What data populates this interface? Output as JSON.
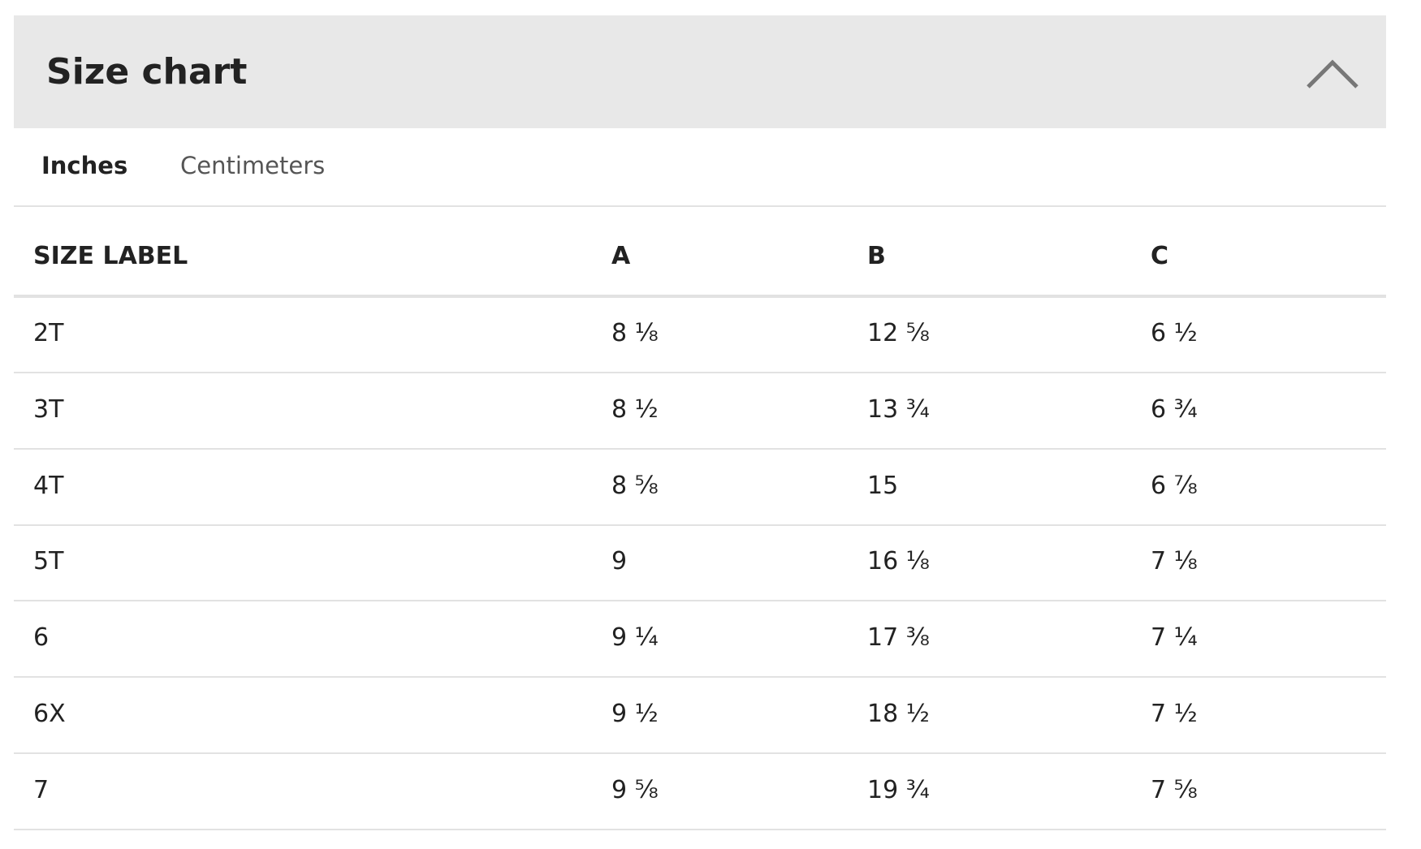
{
  "header": {
    "title": "Size chart"
  },
  "tabs": [
    "Inches",
    "Centimeters"
  ],
  "table": {
    "columns": [
      "SIZE LABEL",
      "A",
      "B",
      "C"
    ],
    "rows": [
      [
        "2T",
        "8 ⅛",
        "12 ⅝",
        "6 ½"
      ],
      [
        "3T",
        "8 ½",
        "13 ¾",
        "6 ¾"
      ],
      [
        "4T",
        "8 ⅝",
        "15",
        "6 ⅞"
      ],
      [
        "5T",
        "9",
        "16 ⅛",
        "7 ⅛"
      ],
      [
        "6",
        "9 ¼",
        "17 ⅜",
        "7 ¼"
      ],
      [
        "6X",
        "9 ½",
        "18 ½",
        "7 ½"
      ],
      [
        "7",
        "9 ⅝",
        "19 ¾",
        "7 ⅝"
      ]
    ]
  }
}
